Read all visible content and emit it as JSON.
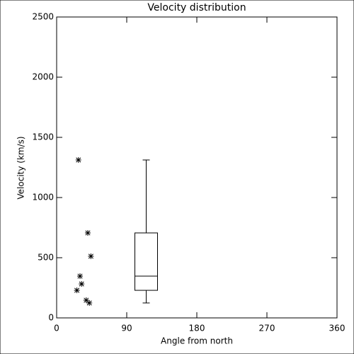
{
  "chart_data": {
    "type": "scatter",
    "title": "Velocity distribution",
    "xlabel": "Angle from north",
    "ylabel": "Velocity (km/s)",
    "x": [
      28,
      40,
      44,
      30,
      32,
      26,
      38,
      42
    ],
    "values": [
      1312,
      706,
      512,
      347,
      282,
      229,
      147,
      124
    ],
    "marker": "asterisk",
    "color": "#000000",
    "box": {
      "position": 115,
      "whislo": 124,
      "q1": 229,
      "med": 347,
      "q3": 706,
      "whishi": 1312
    },
    "xlim": [
      0,
      360
    ],
    "xticks": [
      0,
      90,
      180,
      270,
      360
    ],
    "ylim": [
      0,
      2500
    ],
    "yticks": [
      0,
      500,
      1000,
      1500,
      2000,
      2500
    ]
  }
}
